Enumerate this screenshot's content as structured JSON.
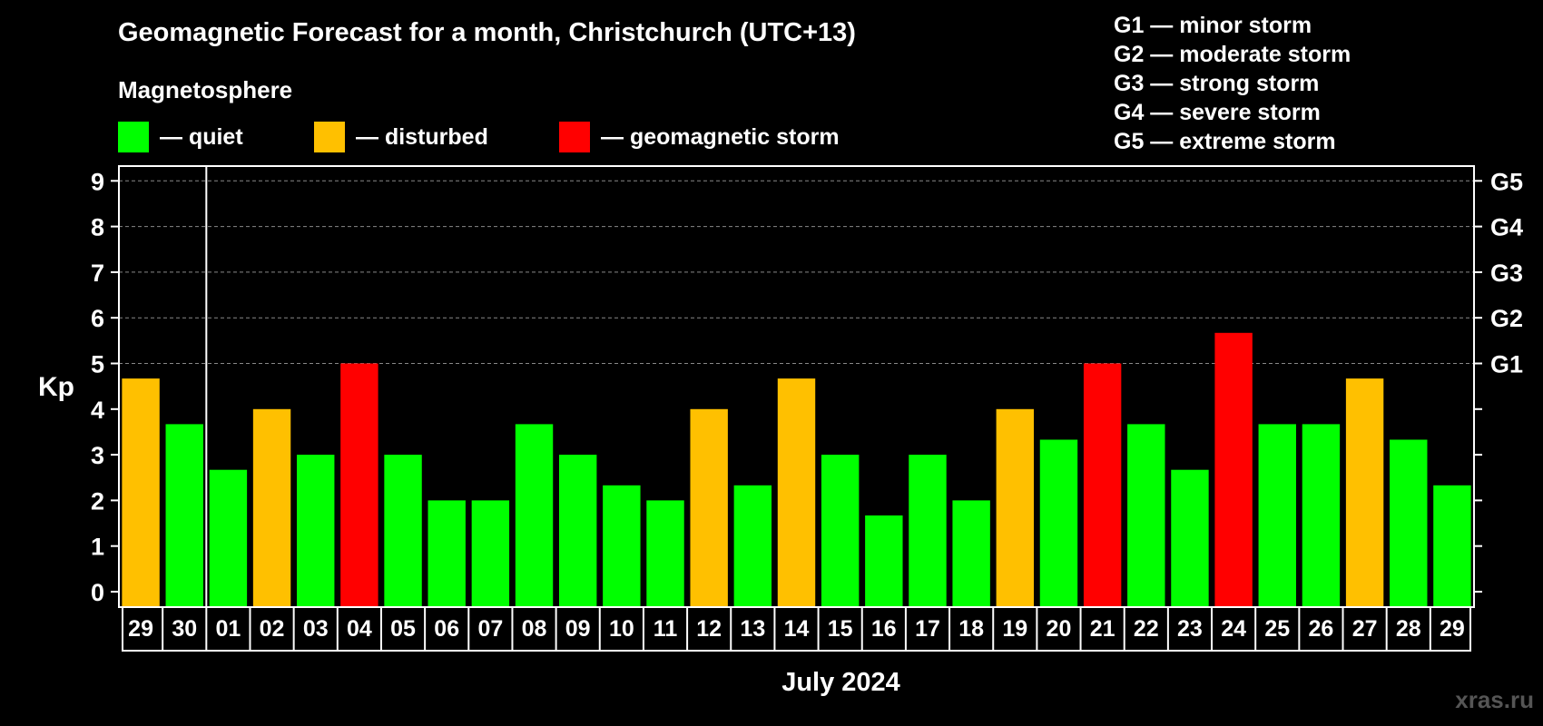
{
  "chart_data": {
    "type": "bar",
    "title": "Geomagnetic Forecast for a month, Christchurch (UTC+13)",
    "xlabel": "July 2024",
    "ylabel": "Kp",
    "ylim": [
      0,
      9
    ],
    "yticks": [
      "0",
      "1",
      "2",
      "3",
      "4",
      "5",
      "6",
      "7",
      "8",
      "9"
    ],
    "right_ticks": [
      {
        "value": 5,
        "label": "G1"
      },
      {
        "value": 6,
        "label": "G2"
      },
      {
        "value": 7,
        "label": "G3"
      },
      {
        "value": 8,
        "label": "G4"
      },
      {
        "value": 9,
        "label": "G5"
      }
    ],
    "categories": [
      "29",
      "30",
      "01",
      "02",
      "03",
      "04",
      "05",
      "06",
      "07",
      "08",
      "09",
      "10",
      "11",
      "12",
      "13",
      "14",
      "15",
      "16",
      "17",
      "18",
      "19",
      "20",
      "21",
      "22",
      "23",
      "24",
      "25",
      "26",
      "27",
      "28",
      "29"
    ],
    "values": [
      4.67,
      3.67,
      2.67,
      4.0,
      3.0,
      5.0,
      3.0,
      2.0,
      2.0,
      3.67,
      3.0,
      2.33,
      2.0,
      4.0,
      2.33,
      4.67,
      3.0,
      1.67,
      3.0,
      2.0,
      4.0,
      3.33,
      5.0,
      3.67,
      2.67,
      5.67,
      3.67,
      3.67,
      4.67,
      3.33,
      2.33
    ],
    "levels": [
      "disturbed",
      "quiet",
      "quiet",
      "disturbed",
      "quiet",
      "storm",
      "quiet",
      "quiet",
      "quiet",
      "quiet",
      "quiet",
      "quiet",
      "quiet",
      "disturbed",
      "quiet",
      "disturbed",
      "quiet",
      "quiet",
      "quiet",
      "quiet",
      "disturbed",
      "quiet",
      "storm",
      "quiet",
      "quiet",
      "storm",
      "quiet",
      "quiet",
      "disturbed",
      "quiet",
      "quiet"
    ],
    "colors": {
      "quiet": "#00ff00",
      "disturbed": "#ffc000",
      "storm": "#ff0000",
      "grid": "#888888",
      "axis": "#ffffff"
    },
    "grid": true
  },
  "legend": {
    "heading": "Magnetosphere",
    "items": [
      {
        "key": "quiet",
        "label": "— quiet"
      },
      {
        "key": "disturbed",
        "label": "— disturbed"
      },
      {
        "key": "storm",
        "label": "— geomagnetic storm"
      }
    ]
  },
  "storm_scale": [
    "G1 — minor storm",
    "G2 — moderate storm",
    "G3 — strong storm",
    "G4 — severe storm",
    "G5 — extreme storm"
  ],
  "watermark": "xras.ru"
}
